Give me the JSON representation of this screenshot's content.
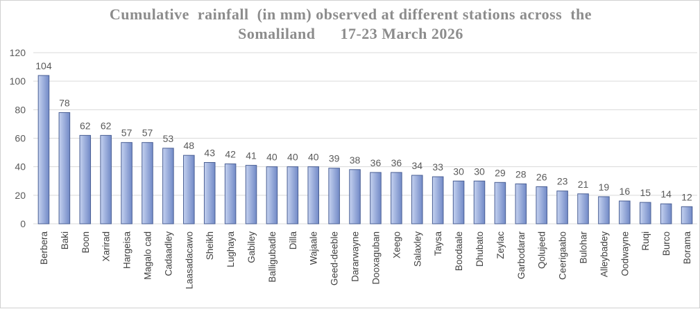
{
  "chart_data": {
    "type": "bar",
    "title_line1": "Cumulative  rainfall  (in mm) observed at different stations across  the",
    "title_line2": "Somaliland      17-23 March 2026",
    "xlabel": "",
    "ylabel": "",
    "ylim": [
      0,
      120
    ],
    "yticks": [
      0,
      20,
      40,
      60,
      80,
      100,
      120
    ],
    "grid": true,
    "legend": "none",
    "categories": [
      "Berbera",
      "Baki",
      "Boon",
      "Xarirad",
      "Hargeisa",
      "Magalo cad",
      "Cadaadley",
      "Laasadacawo",
      "Sheikh",
      "Lughaya",
      "Gabiley",
      "Balligubadle",
      "Dilla",
      "Wajaale",
      "Geed-deeble",
      "Dararwayne",
      "Dooxaguban",
      "Xeego",
      "Salaxley",
      "Taysa",
      "Boodaale",
      "Dhubato",
      "Zeylac",
      "Garbodarar",
      "Qolujeed",
      "Ceerigaabo",
      "Bulohar",
      "Alleybadey",
      "Oodwayne",
      "Ruqi",
      "Burco",
      "Borama"
    ],
    "values": [
      104,
      78,
      62,
      62,
      57,
      57,
      53,
      48,
      43,
      42,
      41,
      40,
      40,
      40,
      39,
      38,
      36,
      36,
      34,
      33,
      30,
      30,
      29,
      28,
      26,
      23,
      21,
      19,
      16,
      15,
      14,
      12
    ],
    "data_labels": true,
    "bar_color_light": "#c5d2f0",
    "bar_color_dark": "#7189c6",
    "bar_edge_color": "#4a5f94"
  }
}
